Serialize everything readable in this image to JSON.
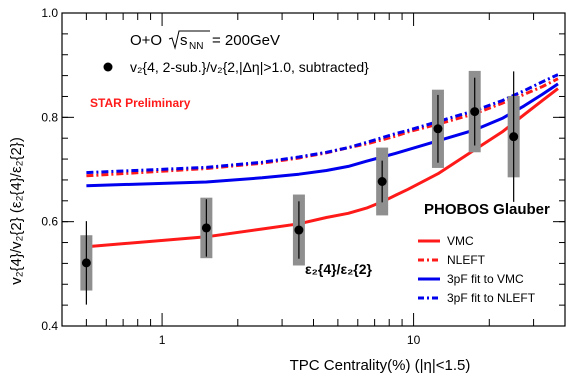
{
  "chart_data": {
    "type": "line",
    "xlabel": "TPC Centrality(%) (|η|<1.5)",
    "ylabel": "v₂{4}/v₂{2} (ε₂{4}/ε₂{2})",
    "xscale": "log",
    "xlim": [
      0.4,
      40
    ],
    "ylim": [
      0.4,
      1.0
    ],
    "x_ticks": [
      {
        "value": 1,
        "label": "1"
      },
      {
        "value": 10,
        "label": "10"
      }
    ],
    "y_ticks": [
      {
        "value": 0.4,
        "label": "0.4"
      },
      {
        "value": 0.6,
        "label": "0.6"
      },
      {
        "value": 0.8,
        "label": "0.8"
      },
      {
        "value": 1.0,
        "label": "1.0"
      }
    ],
    "annotations": {
      "system_main": "O+O ",
      "system_energy": "= 200GeV",
      "star": "STAR Preliminary",
      "model": "PHOBOS Glauber",
      "eps_ratio": "ε₂{4}/ε₂{2}"
    },
    "data_legend": "v₂{4, 2-sub.}/v₂{2,|Δη|>1.0, subtracted}",
    "colors": {
      "red": "#ff1a1a",
      "blue": "#0000ee",
      "marker": "#000000",
      "syst": "#8f8f8f"
    },
    "series": [
      {
        "name": "v₂{4, 2-sub.}/v₂{2,|Δη|>1.0, subtracted}",
        "kind": "points",
        "x": [
          0.5,
          1.5,
          3.5,
          7.5,
          12.5,
          17.5,
          25
        ],
        "y": [
          0.521,
          0.588,
          0.584,
          0.677,
          0.778,
          0.811,
          0.763
        ],
        "stat_err": [
          0.08,
          0.055,
          0.055,
          0.04,
          0.065,
          0.065,
          0.125
        ],
        "syst_err": [
          0.053,
          0.058,
          0.068,
          0.065,
          0.075,
          0.078,
          0.078
        ]
      },
      {
        "name": "VMC",
        "kind": "line",
        "style": "solid",
        "color": "#ff1a1a",
        "x": [
          0.5,
          1.5,
          2.5,
          3.5,
          4.5,
          5.5,
          6.5,
          7.5,
          8.5,
          9.5,
          12.5,
          17.5,
          22.5,
          27.5,
          32.5,
          37.5
        ],
        "y": [
          0.552,
          0.571,
          0.586,
          0.596,
          0.608,
          0.616,
          0.626,
          0.638,
          0.651,
          0.662,
          0.692,
          0.738,
          0.772,
          0.805,
          0.832,
          0.855
        ]
      },
      {
        "name": "NLEFT",
        "kind": "line",
        "style": "dashdot",
        "color": "#ff1a1a",
        "x": [
          0.5,
          1.5,
          2.5,
          3.5,
          4.5,
          5.5,
          6.5,
          7.5,
          8.5,
          9.5,
          12.5,
          17.5,
          22.5,
          27.5,
          32.5,
          37.5
        ],
        "y": [
          0.688,
          0.702,
          0.712,
          0.722,
          0.732,
          0.742,
          0.749,
          0.757,
          0.764,
          0.772,
          0.787,
          0.807,
          0.827,
          0.844,
          0.859,
          0.874
        ]
      },
      {
        "name": "3pF fit to VMC",
        "kind": "line",
        "style": "solid",
        "color": "#0000ee",
        "x": [
          0.5,
          1.5,
          2.5,
          3.5,
          4.5,
          5.5,
          6.5,
          7.5,
          8.5,
          9.5,
          12.5,
          17.5,
          22.5,
          27.5,
          32.5,
          37.5
        ],
        "y": [
          0.669,
          0.676,
          0.684,
          0.691,
          0.698,
          0.706,
          0.716,
          0.724,
          0.731,
          0.738,
          0.755,
          0.776,
          0.798,
          0.822,
          0.844,
          0.864
        ]
      },
      {
        "name": "3pF fit to NLEFT",
        "kind": "line",
        "style": "dashdot",
        "color": "#0000ee",
        "x": [
          0.5,
          1.5,
          2.5,
          3.5,
          4.5,
          5.5,
          6.5,
          7.5,
          8.5,
          9.5,
          12.5,
          17.5,
          22.5,
          27.5,
          32.5,
          37.5
        ],
        "y": [
          0.694,
          0.704,
          0.714,
          0.724,
          0.733,
          0.742,
          0.752,
          0.761,
          0.769,
          0.775,
          0.792,
          0.813,
          0.832,
          0.851,
          0.868,
          0.882
        ]
      }
    ],
    "legend": [
      {
        "label": "VMC",
        "color": "#ff1a1a",
        "style": "solid"
      },
      {
        "label": "NLEFT",
        "color": "#ff1a1a",
        "style": "dashdot"
      },
      {
        "label": "3pF fit to VMC",
        "color": "#0000ee",
        "style": "solid"
      },
      {
        "label": "3pF fit to NLEFT",
        "color": "#0000ee",
        "style": "dashdot"
      }
    ],
    "legend_position": "bottom-right"
  }
}
